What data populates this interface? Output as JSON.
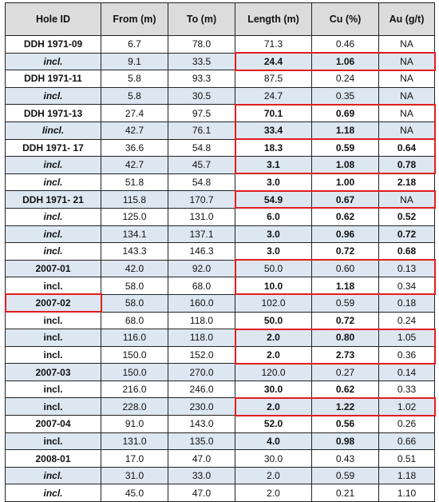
{
  "table": {
    "headers": [
      "Hole ID",
      "From (m)",
      "To (m)",
      "Length (m)",
      "Cu (%)",
      "Au (g/t)"
    ],
    "rows": [
      {
        "id": "DDH 1971-09",
        "idItalic": false,
        "from": "6.7",
        "to": "78.0",
        "len": "71.3",
        "cu": "0.46",
        "au": "NA",
        "bLen": false,
        "bCu": false,
        "bAu": false
      },
      {
        "id": "incl.",
        "idItalic": true,
        "from": "9.1",
        "to": "33.5",
        "len": "24.4",
        "cu": "1.06",
        "au": "NA",
        "bLen": true,
        "bCu": true,
        "bAu": false
      },
      {
        "id": "DDH 1971-11",
        "idItalic": false,
        "from": "5.8",
        "to": "93.3",
        "len": "87.5",
        "cu": "0.24",
        "au": "NA",
        "bLen": false,
        "bCu": false,
        "bAu": false
      },
      {
        "id": "incl.",
        "idItalic": true,
        "from": "5.8",
        "to": "30.5",
        "len": "24.7",
        "cu": "0.35",
        "au": "NA",
        "bLen": false,
        "bCu": false,
        "bAu": false
      },
      {
        "id": "DDH 1971-13",
        "idItalic": false,
        "from": "27.4",
        "to": "97.5",
        "len": "70.1",
        "cu": "0.69",
        "au": "NA",
        "bLen": true,
        "bCu": true,
        "bAu": false
      },
      {
        "id": "Iincl.",
        "idItalic": true,
        "from": "42.7",
        "to": "76.1",
        "len": "33.4",
        "cu": "1.18",
        "au": "NA",
        "bLen": true,
        "bCu": true,
        "bAu": false
      },
      {
        "id": "DDH 1971- 17",
        "idItalic": false,
        "from": "36.6",
        "to": "54.8",
        "len": "18.3",
        "cu": "0.59",
        "au": "0.64",
        "bLen": true,
        "bCu": true,
        "bAu": true
      },
      {
        "id": "incl.",
        "idItalic": true,
        "from": "42.7",
        "to": "45.7",
        "len": "3.1",
        "cu": "1.08",
        "au": "0.78",
        "bLen": true,
        "bCu": true,
        "bAu": true
      },
      {
        "id": "incl.",
        "idItalic": true,
        "from": "51.8",
        "to": "54.8",
        "len": "3.0",
        "cu": "1.00",
        "au": "2.18",
        "bLen": true,
        "bCu": true,
        "bAu": true
      },
      {
        "id": "DDH 1971- 21",
        "idItalic": false,
        "from": "115.8",
        "to": "170.7",
        "len": "54.9",
        "cu": "0.67",
        "au": "NA",
        "bLen": true,
        "bCu": true,
        "bAu": false
      },
      {
        "id": "incl.",
        "idItalic": true,
        "from": "125.0",
        "to": "131.0",
        "len": "6.0",
        "cu": "0.62",
        "au": "0.52",
        "bLen": true,
        "bCu": true,
        "bAu": true
      },
      {
        "id": "incl.",
        "idItalic": true,
        "from": "134.1",
        "to": "137.1",
        "len": "3.0",
        "cu": "0.96",
        "au": "0.72",
        "bLen": true,
        "bCu": true,
        "bAu": true
      },
      {
        "id": "incl.",
        "idItalic": true,
        "from": "143.3",
        "to": "146.3",
        "len": "3.0",
        "cu": "0.72",
        "au": "0.68",
        "bLen": true,
        "bCu": true,
        "bAu": true
      },
      {
        "id": "2007-01",
        "idItalic": false,
        "from": "42.0",
        "to": "92.0",
        "len": "50.0",
        "cu": "0.60",
        "au": "0.13",
        "bLen": false,
        "bCu": false,
        "bAu": false
      },
      {
        "id": "incl.",
        "idItalic": false,
        "from": "58.0",
        "to": "68.0",
        "len": "10.0",
        "cu": "1.18",
        "au": "0.34",
        "bLen": true,
        "bCu": true,
        "bAu": false
      },
      {
        "id": "2007-02",
        "idItalic": false,
        "from": "58.0",
        "to": "160.0",
        "len": "102.0",
        "cu": "0.59",
        "au": "0.18",
        "bLen": false,
        "bCu": false,
        "bAu": false
      },
      {
        "id": "incl.",
        "idItalic": false,
        "from": "68.0",
        "to": "118.0",
        "len": "50.0",
        "cu": "0.72",
        "au": "0.24",
        "bLen": true,
        "bCu": true,
        "bAu": false
      },
      {
        "id": "incl.",
        "idItalic": false,
        "from": "116.0",
        "to": "118.0",
        "len": "2.0",
        "cu": "0.80",
        "au": "1.05",
        "bLen": true,
        "bCu": true,
        "bAu": false
      },
      {
        "id": "incl.",
        "idItalic": false,
        "from": "150.0",
        "to": "152.0",
        "len": "2.0",
        "cu": "2.73",
        "au": "0.36",
        "bLen": true,
        "bCu": true,
        "bAu": false
      },
      {
        "id": "2007-03",
        "idItalic": false,
        "from": "150.0",
        "to": "270.0",
        "len": "120.0",
        "cu": "0.27",
        "au": "0.14",
        "bLen": false,
        "bCu": false,
        "bAu": false
      },
      {
        "id": "incl.",
        "idItalic": false,
        "from": "216.0",
        "to": "246.0",
        "len": "30.0",
        "cu": "0.62",
        "au": "0.33",
        "bLen": true,
        "bCu": true,
        "bAu": false
      },
      {
        "id": "incl.",
        "idItalic": false,
        "from": "228.0",
        "to": "230.0",
        "len": "2.0",
        "cu": "1.22",
        "au": "1.02",
        "bLen": true,
        "bCu": true,
        "bAu": false
      },
      {
        "id": "2007-04",
        "idItalic": false,
        "from": "91.0",
        "to": "143.0",
        "len": "52.0",
        "cu": "0.56",
        "au": "0.26",
        "bLen": true,
        "bCu": true,
        "bAu": false
      },
      {
        "id": "incl.",
        "idItalic": false,
        "from": "131.0",
        "to": "135.0",
        "len": "4.0",
        "cu": "0.98",
        "au": "0.66",
        "bLen": true,
        "bCu": true,
        "bAu": false
      },
      {
        "id": "2008-01",
        "idItalic": false,
        "from": "17.0",
        "to": "47.0",
        "len": "30.0",
        "cu": "0.43",
        "au": "0.51",
        "bLen": false,
        "bCu": false,
        "bAu": false
      },
      {
        "id": "incl.",
        "idItalic": true,
        "from": "31.0",
        "to": "33.0",
        "len": "2.0",
        "cu": "0.59",
        "au": "1.18",
        "bLen": false,
        "bCu": false,
        "bAu": false
      },
      {
        "id": "incl.",
        "idItalic": true,
        "from": "45.0",
        "to": "47.0",
        "len": "2.0",
        "cu": "0.21",
        "au": "1.10",
        "bLen": false,
        "bCu": false,
        "bAu": false
      }
    ],
    "highlights": [
      {
        "rowStart": 1,
        "rowEnd": 1,
        "colStart": 3,
        "colEnd": 5
      },
      {
        "rowStart": 4,
        "rowEnd": 5,
        "colStart": 3,
        "colEnd": 5
      },
      {
        "rowStart": 6,
        "rowEnd": 7,
        "colStart": 3,
        "colEnd": 5
      },
      {
        "rowStart": 9,
        "rowEnd": 9,
        "colStart": 3,
        "colEnd": 5
      },
      {
        "rowStart": 13,
        "rowEnd": 14,
        "colStart": 3,
        "colEnd": 5
      },
      {
        "rowStart": 15,
        "rowEnd": 15,
        "colStart": 0,
        "colEnd": 0
      },
      {
        "rowStart": 17,
        "rowEnd": 18,
        "colStart": 3,
        "colEnd": 5
      },
      {
        "rowStart": 21,
        "rowEnd": 21,
        "colStart": 3,
        "colEnd": 5
      }
    ],
    "highlight_color": "#e01e1e",
    "header_bg": "#dcdcdc",
    "stripe_bg": "#dde7f2"
  }
}
